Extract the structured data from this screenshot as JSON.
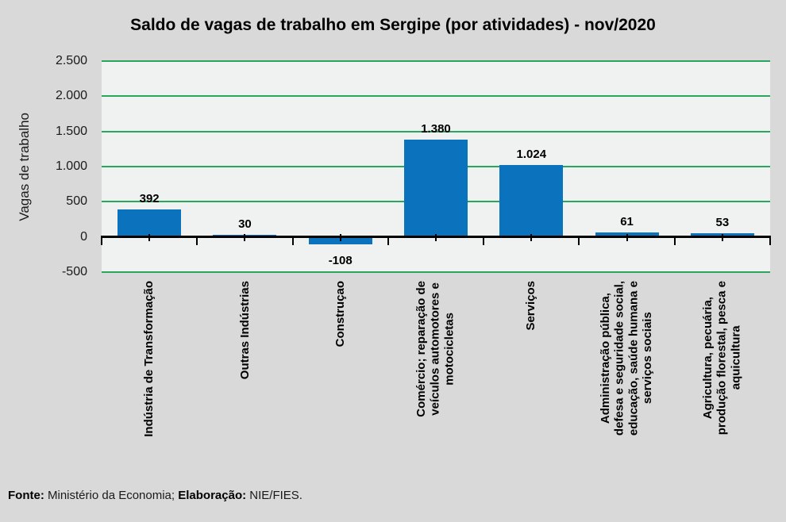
{
  "chart_data": {
    "type": "bar",
    "title": "Saldo de vagas de trabalho em Sergipe (por atividades) - nov/2020",
    "xlabel": "",
    "ylabel": "Vagas de trabalho",
    "ylim": [
      -500,
      2500
    ],
    "ytick_interval": 500,
    "yticks": [
      2500,
      2000,
      1500,
      1000,
      500,
      0,
      -500
    ],
    "ytick_labels": [
      "2.500",
      "2.000",
      "1.500",
      "1.000",
      "500",
      "0",
      "-500"
    ],
    "grid": true,
    "legend": false,
    "categories": [
      "Indústria de Transformação",
      "Outras Indústrias",
      "Construçao",
      "Comércio; reparação de\nveículos automotores e\nmotocicletas",
      "Serviços",
      "Administração pública,\ndefesa e seguridade social,\neducação, saúde humana e\nserviços sociais",
      "Agricultura, pecuária,\nprodução florestal, pesca e\naquicultura"
    ],
    "values": [
      392,
      30,
      -108,
      1380,
      1024,
      61,
      53
    ],
    "value_labels": [
      "392",
      "30",
      "-108",
      "1.380",
      "1.024",
      "61",
      "53"
    ],
    "colors": {
      "bar": "#0b72be",
      "gridline": "#2aa55f",
      "plot_background": "#f0f1f1",
      "page_background": "#d9d9d9",
      "axis": "#000000"
    }
  },
  "footer": {
    "fonte_label": "Fonte:",
    "fonte_text": " Ministério da Economia; ",
    "elaboracao_label": "Elaboração:",
    "elaboracao_text": " NIE/FIES."
  }
}
